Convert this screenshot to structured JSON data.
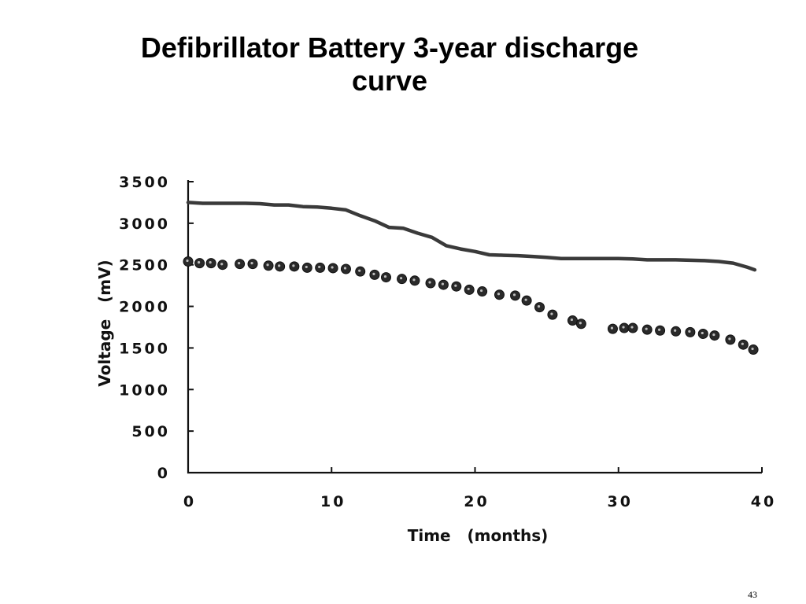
{
  "slide": {
    "title": "Defibrillator Battery 3-year discharge curve",
    "page_number": "43"
  },
  "chart_data": {
    "type": "line",
    "title": "",
    "xlabel": "Time   (months)",
    "ylabel": "Voltage   (mV)",
    "xlim": [
      0,
      40
    ],
    "ylim": [
      0,
      3500
    ],
    "x_ticks": [
      "0",
      "10",
      "20",
      "30",
      "40"
    ],
    "y_ticks": [
      "0",
      "500",
      "1000",
      "1500",
      "2000",
      "2500",
      "3000",
      "3500"
    ],
    "grid": false,
    "legend": "none",
    "colors": {
      "line": "#3a3a3a",
      "marker": "#2a2a2a",
      "axis": "#111111"
    },
    "series": [
      {
        "style": "line",
        "x": [
          0,
          1,
          2,
          3,
          4,
          5,
          6,
          7,
          8,
          9,
          10,
          11,
          12,
          13,
          14,
          15,
          16,
          17,
          18,
          19,
          20,
          21,
          22,
          23,
          24,
          25,
          26,
          27,
          28,
          29,
          30,
          31,
          32,
          33,
          34,
          35,
          36,
          37,
          38,
          39,
          39.5
        ],
        "y": [
          3250,
          3240,
          3240,
          3240,
          3240,
          3235,
          3220,
          3220,
          3200,
          3195,
          3180,
          3160,
          3090,
          3030,
          2950,
          2940,
          2880,
          2830,
          2730,
          2690,
          2660,
          2620,
          2615,
          2610,
          2600,
          2590,
          2575,
          2575,
          2575,
          2575,
          2575,
          2570,
          2560,
          2560,
          2560,
          2555,
          2550,
          2540,
          2520,
          2470,
          2440
        ]
      },
      {
        "style": "scatter",
        "x": [
          0,
          0.8,
          1.6,
          2.4,
          3.6,
          4.5,
          5.6,
          6.4,
          7.4,
          8.3,
          9.2,
          10.1,
          11.0,
          12.0,
          13.0,
          13.8,
          14.9,
          15.8,
          16.9,
          17.8,
          18.7,
          19.6,
          20.5,
          21.7,
          22.8,
          23.6,
          24.5,
          25.4,
          26.8,
          27.4,
          29.6,
          30.4,
          31.0,
          32.0,
          32.9,
          34.0,
          35.0,
          35.9,
          36.7,
          37.8,
          38.7,
          39.4
        ],
        "y": [
          2540,
          2520,
          2520,
          2500,
          2510,
          2510,
          2490,
          2480,
          2480,
          2465,
          2465,
          2460,
          2450,
          2420,
          2380,
          2350,
          2330,
          2310,
          2280,
          2260,
          2240,
          2200,
          2180,
          2140,
          2130,
          2070,
          1990,
          1900,
          1830,
          1790,
          1730,
          1740,
          1740,
          1720,
          1710,
          1700,
          1690,
          1670,
          1650,
          1600,
          1540,
          1480
        ]
      }
    ]
  }
}
